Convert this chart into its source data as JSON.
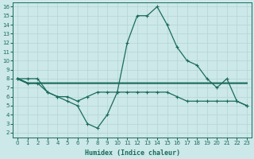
{
  "x": [
    0,
    1,
    2,
    3,
    4,
    5,
    6,
    7,
    8,
    9,
    10,
    11,
    12,
    13,
    14,
    15,
    16,
    17,
    18,
    19,
    20,
    21,
    22,
    23
  ],
  "line_main": [
    8.0,
    8.0,
    8.0,
    6.5,
    6.0,
    5.5,
    5.0,
    3.0,
    2.5,
    4.0,
    6.5,
    12.0,
    15.0,
    15.0,
    16.0,
    14.0,
    11.5,
    10.0,
    9.5,
    8.0,
    7.0,
    8.0,
    5.5,
    5.0
  ],
  "line_flat1": [
    8.0,
    7.5,
    7.5,
    7.5,
    7.5,
    7.5,
    7.5,
    7.5,
    7.5,
    7.5,
    7.5,
    7.5,
    7.5,
    7.5,
    7.5,
    7.5,
    7.5,
    7.5,
    7.5,
    7.5,
    7.5,
    7.5,
    7.5,
    7.5
  ],
  "line_flat2": [
    8.0,
    7.5,
    7.5,
    7.5,
    7.5,
    7.5,
    7.5,
    7.5,
    7.5,
    7.5,
    7.5,
    7.5,
    7.5,
    7.5,
    7.5,
    7.5,
    7.5,
    7.5,
    7.5,
    7.5,
    7.5,
    7.5,
    7.5,
    7.5
  ],
  "line_lower": [
    8.0,
    7.5,
    7.5,
    6.5,
    6.0,
    6.0,
    5.5,
    6.0,
    6.5,
    6.5,
    6.5,
    6.5,
    6.5,
    6.5,
    6.5,
    6.5,
    6.0,
    5.5,
    5.5,
    5.5,
    5.5,
    5.5,
    5.5,
    5.0
  ],
  "color": "#1a6b5a",
  "bg_color": "#cce8e8",
  "grid_color": "#b5d5d5",
  "xlabel": "Humidex (Indice chaleur)",
  "yticks": [
    2,
    3,
    4,
    5,
    6,
    7,
    8,
    9,
    10,
    11,
    12,
    13,
    14,
    15,
    16
  ],
  "xticks": [
    0,
    1,
    2,
    3,
    4,
    5,
    6,
    7,
    8,
    9,
    10,
    11,
    12,
    13,
    14,
    15,
    16,
    17,
    18,
    19,
    20,
    21,
    22,
    23
  ],
  "xlim": [
    -0.5,
    23.5
  ],
  "ylim": [
    1.5,
    16.5
  ]
}
